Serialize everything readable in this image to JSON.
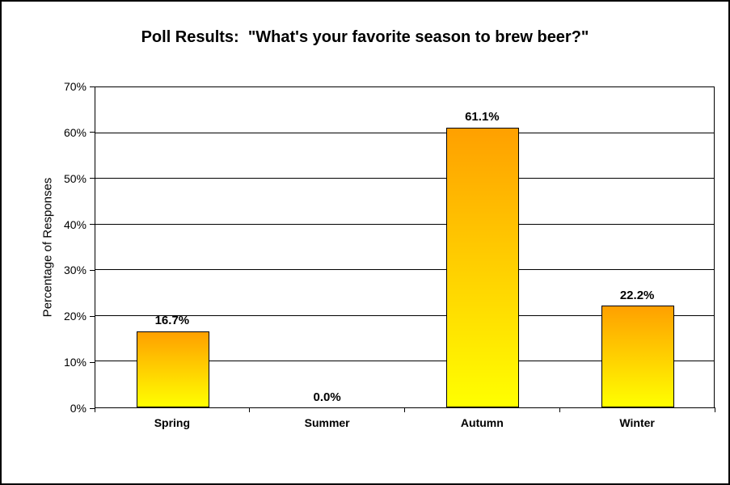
{
  "chart_data": {
    "type": "bar",
    "title": "Poll Results:  \"What's your favorite season to brew beer?\"",
    "categories": [
      "Spring",
      "Summer",
      "Autumn",
      "Winter"
    ],
    "values": [
      16.7,
      0.0,
      61.1,
      22.2
    ],
    "value_labels": [
      "16.7%",
      "0.0%",
      "61.1%",
      "22.2%"
    ],
    "xlabel": "",
    "ylabel": "Percentage of Responses",
    "ylim": [
      0,
      70
    ],
    "ytick_step": 10,
    "ytick_labels": [
      "0%",
      "10%",
      "20%",
      "30%",
      "40%",
      "50%",
      "60%",
      "70%"
    ],
    "grid": "horizontal",
    "legend": "none",
    "colors": {
      "bar_gradient_top": "#FFA000",
      "bar_gradient_bottom": "#FFFF00",
      "bar_border": "#000000",
      "gridline": "#000000",
      "background": "#FFFFFF"
    }
  }
}
